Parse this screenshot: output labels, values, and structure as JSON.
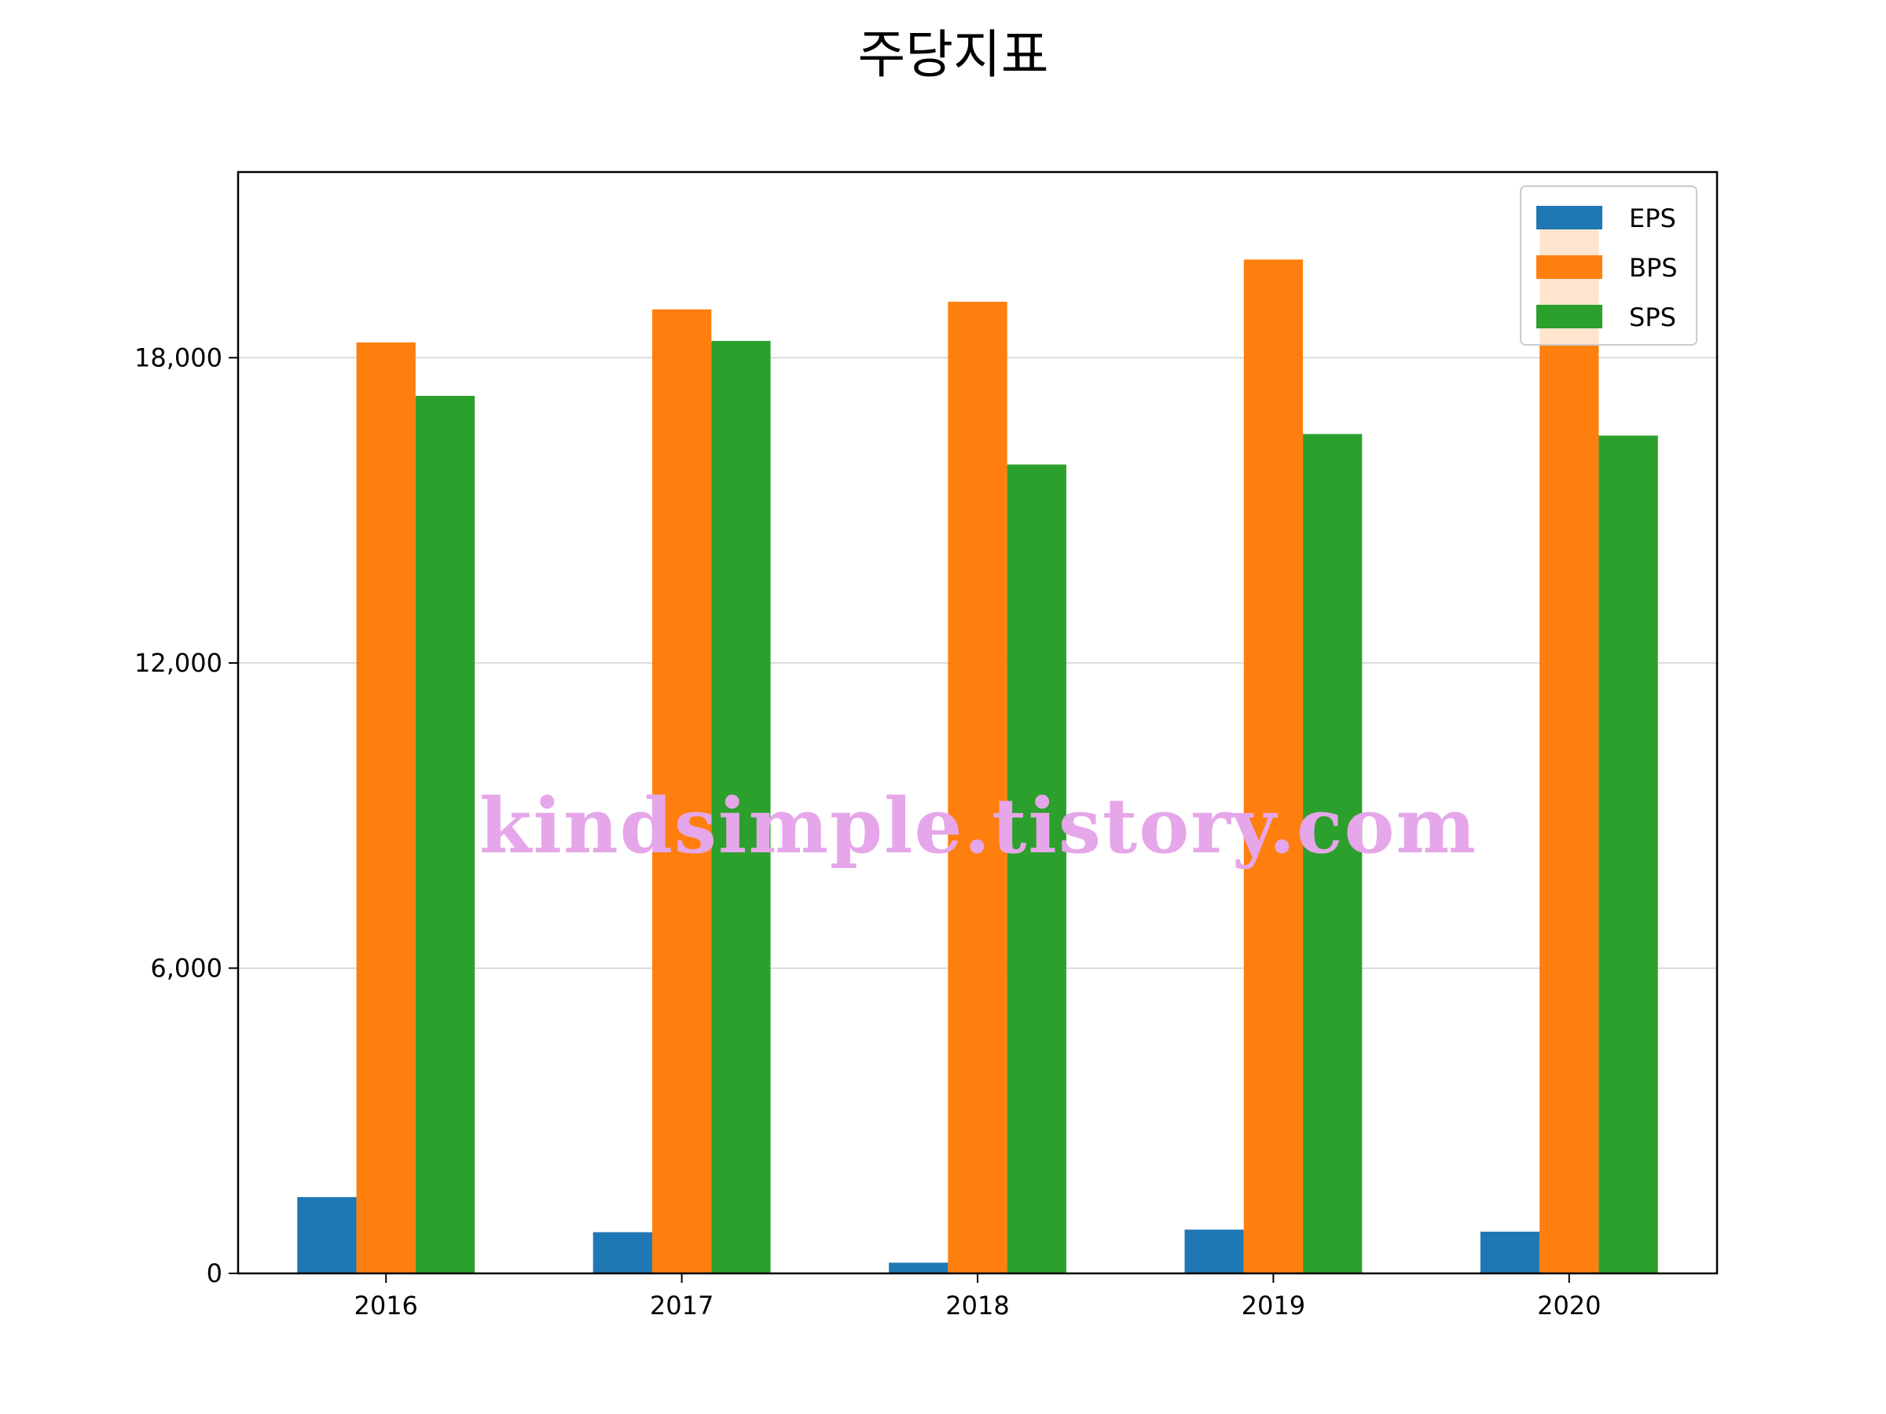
{
  "chart_data": {
    "type": "bar",
    "title": "주당지표",
    "xlabel": "",
    "ylabel": "",
    "categories": [
      "2016",
      "2017",
      "2018",
      "2019",
      "2020"
    ],
    "series": [
      {
        "name": "EPS",
        "color": "#1f77b4",
        "values": [
          1500,
          810,
          210,
          860,
          820
        ]
      },
      {
        "name": "BPS",
        "color": "#ff7f0e",
        "values": [
          18300,
          18950,
          19100,
          19930,
          20600
        ]
      },
      {
        "name": "SPS",
        "color": "#2ca02c",
        "values": [
          17250,
          18330,
          15900,
          16500,
          16470
        ]
      }
    ],
    "ylim": [
      0,
      21650
    ],
    "yticks": [
      0,
      6000,
      12000,
      18000
    ],
    "ytick_labels": [
      "0",
      "6,000",
      "12,000",
      "18,000"
    ],
    "grid": "horizontal",
    "legend_position": "top-right"
  },
  "watermark": {
    "text": "kindsimple.tistory.com",
    "color": "#e6a6ea"
  }
}
